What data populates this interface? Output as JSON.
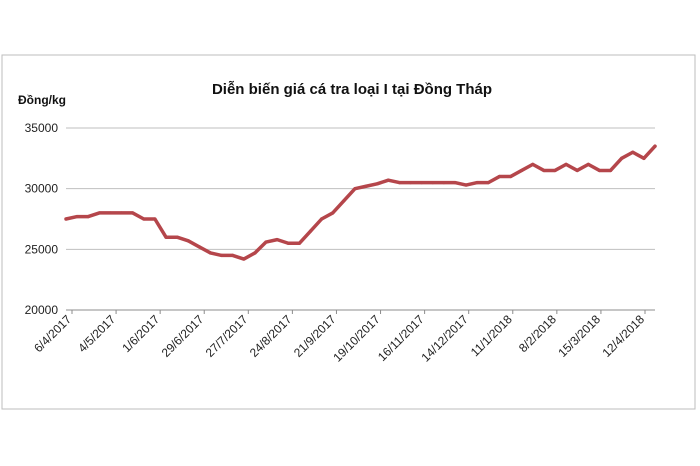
{
  "chart_data": {
    "type": "line",
    "title": "Diễn biến giá cá tra loại I tại Đồng Tháp",
    "ylabel": "Đồng/kg",
    "xlabel": "",
    "ylim": [
      20000,
      35000
    ],
    "yticks": [
      20000,
      25000,
      30000,
      35000
    ],
    "ytick_labels": [
      "20000",
      "25000",
      "30000",
      "35000"
    ],
    "xtick_labels": [
      "6/4/2017",
      "4/5/2017",
      "1/6/2017",
      "29/6/2017",
      "27/7/2017",
      "24/8/2017",
      "21/9/2017",
      "19/10/2017",
      "16/11/2017",
      "14/12/2017",
      "11/1/2018",
      "8/2/2018",
      "15/3/2018",
      "12/4/2018"
    ],
    "grid": true,
    "legend": "none",
    "series": [
      {
        "color": "#b5464b",
        "values": [
          27500,
          27700,
          27700,
          28000,
          28000,
          28000,
          28000,
          27500,
          27500,
          26000,
          26000,
          25700,
          25200,
          24700,
          24500,
          24500,
          24200,
          24700,
          25600,
          25800,
          25500,
          25500,
          26500,
          27500,
          28000,
          29000,
          30000,
          30200,
          30400,
          30700,
          30500,
          30500,
          30500,
          30500,
          30500,
          30500,
          30300,
          30500,
          30500,
          31000,
          31000,
          31500,
          32000,
          31500,
          31500,
          32000,
          31500,
          32000,
          31500,
          31500,
          32500,
          33000,
          32500,
          33500
        ]
      }
    ]
  }
}
